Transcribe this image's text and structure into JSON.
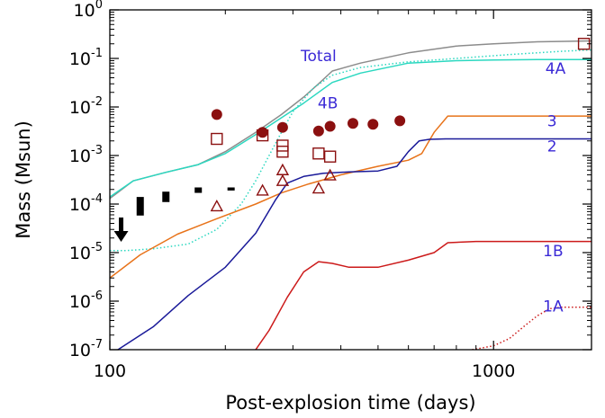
{
  "chart_data": {
    "type": "line",
    "xlabel": "Post-explosion time (days)",
    "ylabel": "Mass (Msun)",
    "xscale": "log",
    "yscale": "log",
    "xlim": [
      100,
      1800
    ],
    "ylim": [
      1e-07,
      1
    ],
    "x_ticks": [
      {
        "value": 100,
        "label": "100"
      },
      {
        "value": 1000,
        "label": "1000"
      }
    ],
    "y_ticks": [
      {
        "value": 1e-07,
        "base": "10",
        "exp": "-7"
      },
      {
        "value": 1e-06,
        "base": "10",
        "exp": "-6"
      },
      {
        "value": 1e-05,
        "base": "10",
        "exp": "-5"
      },
      {
        "value": 0.0001,
        "base": "10",
        "exp": "-4"
      },
      {
        "value": 0.001,
        "base": "10",
        "exp": "-3"
      },
      {
        "value": 0.01,
        "base": "10",
        "exp": "-2"
      },
      {
        "value": 0.1,
        "base": "10",
        "exp": "-1"
      },
      {
        "value": 1,
        "base": "10",
        "exp": "0"
      }
    ],
    "grid": false,
    "series": [
      {
        "name": "Total",
        "color": "#8c8c8c",
        "dash": "solid",
        "label_color": "#3b2ad6",
        "x": [
          100,
          115,
          140,
          170,
          200,
          240,
          280,
          320,
          350,
          380,
          450,
          600,
          800,
          1000,
          1300,
          1800
        ],
        "y": [
          0.00013,
          0.0003,
          0.00045,
          0.00065,
          0.0012,
          0.003,
          0.007,
          0.016,
          0.03,
          0.055,
          0.08,
          0.13,
          0.18,
          0.2,
          0.22,
          0.23
        ]
      },
      {
        "name": "4A",
        "color": "#2bd8c0",
        "dash": "solid",
        "label_color": "#3b2ad6",
        "x": [
          100,
          115,
          140,
          170,
          200,
          240,
          280,
          320,
          350,
          380,
          450,
          600,
          800,
          1000,
          1300,
          1800
        ],
        "y": [
          0.00014,
          0.0003,
          0.00045,
          0.00065,
          0.0011,
          0.0027,
          0.006,
          0.012,
          0.02,
          0.032,
          0.05,
          0.08,
          0.09,
          0.093,
          0.095,
          0.095
        ]
      },
      {
        "name": "4B",
        "color": "#2bd8c0",
        "dash": "dotted",
        "label_color": "#3b2ad6",
        "x": [
          100,
          110,
          130,
          160,
          190,
          220,
          240,
          260,
          280,
          300,
          340,
          380,
          450,
          600,
          800,
          1100,
          1500,
          1800
        ],
        "y": [
          1.1e-05,
          1.1e-05,
          1.2e-05,
          1.5e-05,
          3e-05,
          0.0001,
          0.0003,
          0.001,
          0.003,
          0.008,
          0.025,
          0.045,
          0.065,
          0.085,
          0.1,
          0.12,
          0.14,
          0.15
        ]
      },
      {
        "name": "3",
        "color": "#e8731a",
        "dash": "solid",
        "label_color": "#3b2ad6",
        "x": [
          100,
          120,
          150,
          190,
          240,
          280,
          330,
          400,
          500,
          600,
          650,
          700,
          760,
          1000,
          1400,
          1800
        ],
        "y": [
          3e-06,
          9e-06,
          2.4e-05,
          5e-05,
          0.0001,
          0.00017,
          0.00026,
          0.0004,
          0.0006,
          0.0008,
          0.0011,
          0.003,
          0.0065,
          0.0065,
          0.0065,
          0.0065
        ]
      },
      {
        "name": "2",
        "color": "#1a1a99",
        "dash": "solid",
        "label_color": "#3b2ad6",
        "x": [
          105,
          130,
          160,
          200,
          240,
          270,
          290,
          320,
          360,
          420,
          500,
          560,
          600,
          640,
          680,
          750,
          1000,
          1800
        ],
        "y": [
          1e-07,
          3e-07,
          1.3e-06,
          5e-06,
          2.5e-05,
          0.00012,
          0.00027,
          0.00037,
          0.00043,
          0.00046,
          0.00048,
          0.0006,
          0.0012,
          0.002,
          0.00215,
          0.0022,
          0.0022,
          0.0022
        ]
      },
      {
        "name": "1B",
        "color": "#cc1a1a",
        "dash": "solid",
        "label_color": "#3b2ad6",
        "x": [
          240,
          260,
          290,
          320,
          350,
          380,
          420,
          500,
          600,
          700,
          760,
          900,
          1300,
          1800
        ],
        "y": [
          1e-07,
          2.5e-07,
          1.2e-06,
          4e-06,
          6.5e-06,
          6e-06,
          5e-06,
          5e-06,
          7e-06,
          1e-05,
          1.6e-05,
          1.7e-05,
          1.7e-05,
          1.7e-05
        ]
      },
      {
        "name": "1A",
        "color": "#cc1a1a",
        "dash": "dotted",
        "label_color": "#3b2ad6",
        "x": [
          880,
          1000,
          1100,
          1200,
          1300,
          1400,
          1500,
          1800
        ],
        "y": [
          1e-07,
          1.2e-07,
          1.7e-07,
          3e-07,
          5e-07,
          7e-07,
          7.5e-07,
          7.5e-07
        ]
      }
    ],
    "labels": [
      {
        "text": "Total",
        "series": "Total",
        "x": 350,
        "y": 0.11
      },
      {
        "text": "4A",
        "series": "4A",
        "x": 1450,
        "y": 0.06
      },
      {
        "text": "4B",
        "series": "4B",
        "x": 370,
        "y": 0.0115
      },
      {
        "text": "3",
        "series": "3",
        "x": 1420,
        "y": 0.005
      },
      {
        "text": "2",
        "series": "2",
        "x": 1420,
        "y": 0.0015
      },
      {
        "text": "1B",
        "series": "1B",
        "x": 1430,
        "y": 1.05e-05
      },
      {
        "text": "1A",
        "series": "1A",
        "x": 1430,
        "y": 7.5e-07
      }
    ],
    "markers": {
      "filled_circles": {
        "color": "#8b1010",
        "x": [
          190,
          250,
          282,
          350,
          375,
          430,
          485,
          570
        ],
        "y": [
          0.007,
          0.003,
          0.0038,
          0.0032,
          0.004,
          0.0046,
          0.0044,
          0.0052
        ]
      },
      "open_squares": {
        "color": "#8b1010",
        "x": [
          190,
          250,
          282,
          282,
          350,
          375,
          1720
        ],
        "y": [
          0.0022,
          0.0026,
          0.0016,
          0.0012,
          0.0011,
          0.00095,
          0.2
        ]
      },
      "open_triangles": {
        "color": "#8b1010",
        "x": [
          190,
          250,
          282,
          282,
          350,
          375
        ],
        "y": [
          9e-05,
          0.00019,
          0.0003,
          0.0005,
          0.00021,
          0.00039
        ]
      },
      "black_bars": {
        "color": "#000000",
        "x": [
          120,
          140,
          170,
          207
        ],
        "ylo": [
          5.8e-05,
          0.00011,
          0.00017,
          0.00019
        ],
        "yhi": [
          0.00014,
          0.00018,
          0.00022,
          0.00022
        ]
      },
      "upper_limit": {
        "color": "#000000",
        "x": 107,
        "y": 1.9e-05
      }
    }
  }
}
